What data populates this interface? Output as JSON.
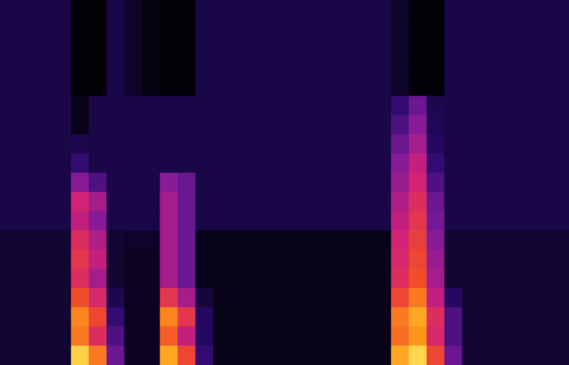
{
  "chart_data": {
    "type": "heatmap",
    "tick_labels": false,
    "value_range": [
      0,
      100
    ],
    "cells": [
      [
        18,
        18,
        18,
        18,
        2,
        2,
        18,
        10,
        4,
        2,
        2,
        18,
        18,
        18,
        18,
        18,
        18,
        18,
        18,
        18,
        18,
        18,
        10,
        2,
        2,
        18,
        18,
        18,
        18,
        18,
        18,
        18
      ],
      [
        18,
        18,
        18,
        18,
        2,
        2,
        18,
        10,
        4,
        2,
        2,
        18,
        18,
        18,
        18,
        18,
        18,
        18,
        18,
        18,
        18,
        18,
        10,
        2,
        2,
        18,
        18,
        18,
        18,
        18,
        18,
        18
      ],
      [
        18,
        18,
        18,
        18,
        2,
        2,
        18,
        10,
        4,
        2,
        2,
        18,
        18,
        18,
        18,
        18,
        18,
        18,
        18,
        18,
        18,
        18,
        10,
        2,
        2,
        18,
        18,
        18,
        18,
        18,
        18,
        18
      ],
      [
        18,
        18,
        18,
        18,
        2,
        2,
        18,
        10,
        4,
        2,
        2,
        18,
        18,
        18,
        18,
        18,
        18,
        18,
        18,
        18,
        18,
        18,
        10,
        2,
        2,
        18,
        18,
        18,
        18,
        18,
        18,
        18
      ],
      [
        18,
        18,
        18,
        18,
        2,
        2,
        18,
        10,
        4,
        2,
        2,
        18,
        18,
        18,
        18,
        18,
        18,
        18,
        18,
        18,
        18,
        18,
        10,
        2,
        2,
        18,
        18,
        18,
        18,
        18,
        18,
        18
      ],
      [
        18,
        18,
        18,
        18,
        6,
        18,
        18,
        18,
        18,
        18,
        18,
        18,
        18,
        18,
        18,
        18,
        18,
        18,
        18,
        18,
        18,
        18,
        30,
        40,
        20,
        18,
        18,
        18,
        18,
        18,
        18,
        18
      ],
      [
        18,
        18,
        18,
        18,
        6,
        18,
        18,
        18,
        18,
        18,
        18,
        18,
        18,
        18,
        18,
        18,
        18,
        18,
        18,
        18,
        18,
        18,
        35,
        45,
        22,
        18,
        18,
        18,
        18,
        18,
        18,
        18
      ],
      [
        18,
        18,
        18,
        18,
        20,
        18,
        18,
        18,
        18,
        18,
        18,
        18,
        18,
        18,
        18,
        18,
        18,
        18,
        18,
        18,
        18,
        18,
        40,
        50,
        25,
        18,
        18,
        18,
        18,
        18,
        18,
        18
      ],
      [
        18,
        18,
        18,
        18,
        30,
        18,
        18,
        18,
        18,
        18,
        18,
        18,
        18,
        18,
        18,
        18,
        18,
        18,
        18,
        18,
        18,
        18,
        45,
        55,
        30,
        18,
        18,
        18,
        18,
        18,
        18,
        18
      ],
      [
        18,
        18,
        18,
        18,
        45,
        35,
        18,
        18,
        18,
        45,
        40,
        18,
        18,
        18,
        18,
        18,
        18,
        18,
        18,
        18,
        18,
        18,
        48,
        58,
        35,
        18,
        18,
        18,
        18,
        18,
        18,
        18
      ],
      [
        18,
        18,
        18,
        18,
        58,
        50,
        18,
        18,
        18,
        50,
        40,
        18,
        18,
        18,
        18,
        18,
        18,
        18,
        18,
        18,
        18,
        18,
        52,
        62,
        40,
        18,
        18,
        18,
        18,
        18,
        18,
        18
      ],
      [
        18,
        18,
        18,
        18,
        55,
        45,
        18,
        18,
        18,
        50,
        40,
        18,
        18,
        18,
        18,
        18,
        18,
        18,
        18,
        18,
        18,
        18,
        55,
        65,
        42,
        18,
        18,
        18,
        18,
        18,
        18,
        18
      ],
      [
        12,
        12,
        12,
        12,
        62,
        52,
        12,
        10,
        10,
        50,
        40,
        6,
        6,
        6,
        6,
        6,
        6,
        6,
        6,
        6,
        6,
        6,
        58,
        68,
        45,
        12,
        12,
        12,
        12,
        12,
        12,
        12
      ],
      [
        12,
        12,
        12,
        12,
        65,
        55,
        12,
        8,
        8,
        50,
        40,
        6,
        6,
        6,
        6,
        6,
        6,
        6,
        6,
        6,
        6,
        6,
        60,
        70,
        48,
        12,
        12,
        12,
        12,
        12,
        12,
        12
      ],
      [
        12,
        12,
        12,
        12,
        62,
        50,
        12,
        8,
        8,
        50,
        40,
        6,
        6,
        6,
        6,
        6,
        6,
        6,
        6,
        6,
        6,
        6,
        62,
        72,
        50,
        12,
        12,
        12,
        12,
        12,
        12,
        12
      ],
      [
        12,
        12,
        12,
        12,
        72,
        60,
        20,
        8,
        8,
        65,
        50,
        15,
        6,
        6,
        6,
        6,
        6,
        6,
        6,
        6,
        6,
        6,
        70,
        80,
        55,
        25,
        12,
        12,
        12,
        12,
        12,
        12
      ],
      [
        12,
        12,
        12,
        12,
        82,
        70,
        30,
        8,
        8,
        82,
        65,
        25,
        6,
        6,
        6,
        6,
        6,
        6,
        6,
        6,
        6,
        6,
        80,
        88,
        62,
        35,
        12,
        12,
        12,
        12,
        12,
        12
      ],
      [
        12,
        12,
        12,
        12,
        80,
        62,
        35,
        8,
        8,
        75,
        55,
        25,
        6,
        6,
        6,
        6,
        6,
        6,
        6,
        6,
        6,
        6,
        78,
        85,
        60,
        35,
        12,
        12,
        12,
        12,
        12,
        12
      ],
      [
        12,
        12,
        12,
        12,
        95,
        80,
        40,
        8,
        8,
        88,
        70,
        30,
        6,
        6,
        6,
        6,
        6,
        6,
        6,
        6,
        6,
        6,
        88,
        96,
        70,
        40,
        12,
        12,
        12,
        12,
        12,
        12
      ]
    ]
  }
}
